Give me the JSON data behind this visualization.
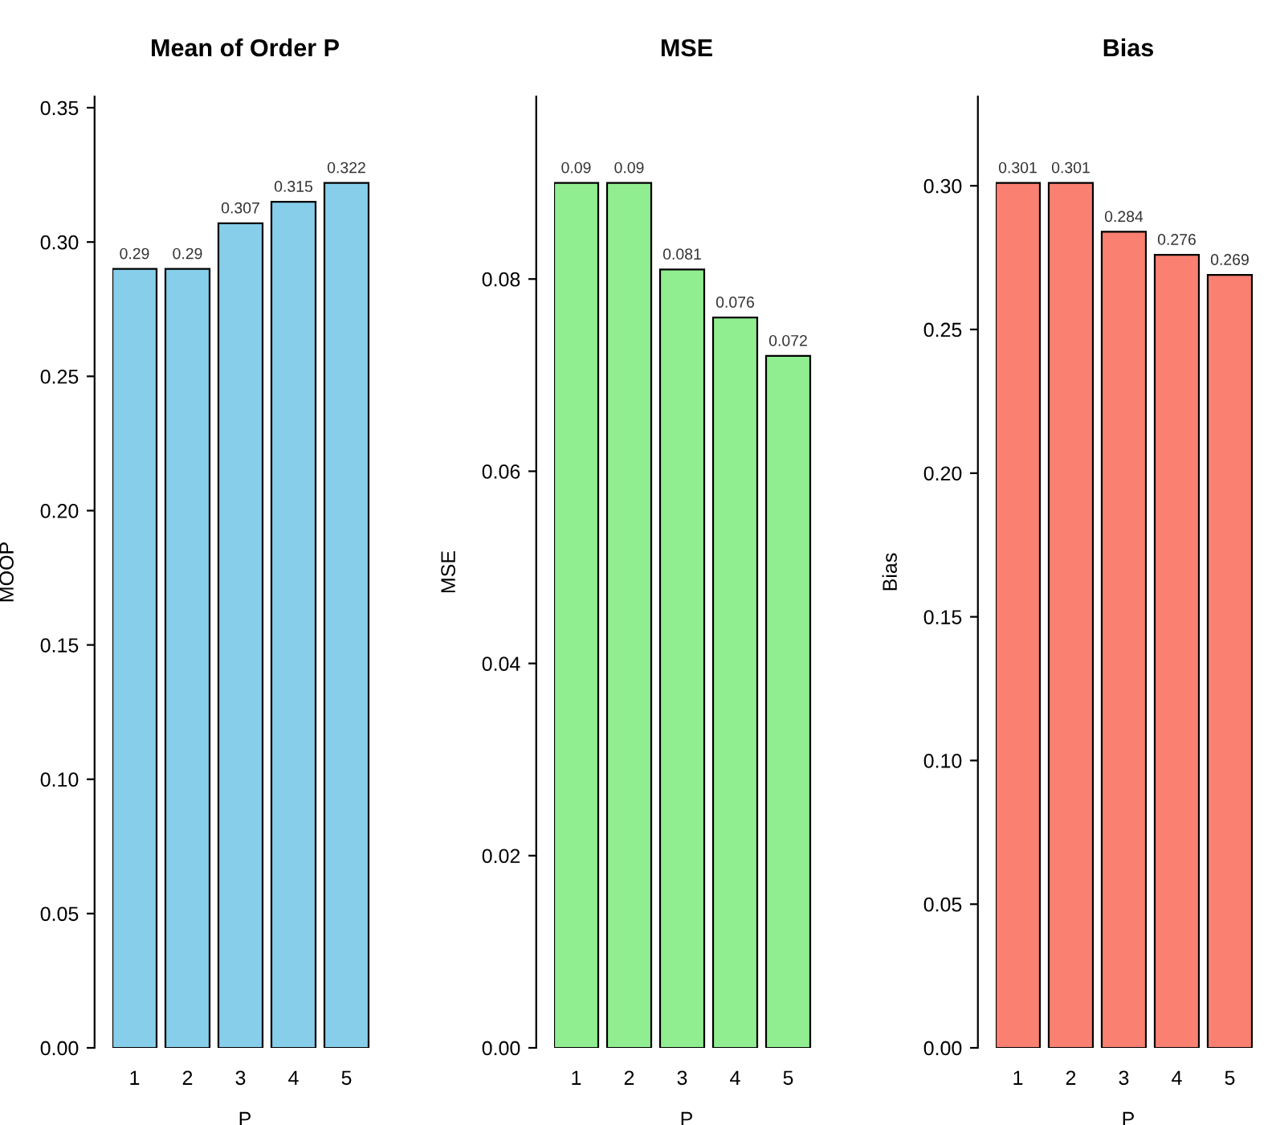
{
  "chart_data": [
    {
      "type": "bar",
      "title": "Mean of Order P",
      "xlabel": "P",
      "ylabel": "MOOP",
      "categories": [
        "1",
        "2",
        "3",
        "4",
        "5"
      ],
      "values": [
        0.29,
        0.29,
        0.307,
        0.315,
        0.322
      ],
      "color": "#87ceeb",
      "ylim": [
        0,
        0.3542
      ],
      "yticks": [
        {
          "value": 0,
          "label": "0.00"
        },
        {
          "value": 0.05,
          "label": "0.05"
        },
        {
          "value": 0.1,
          "label": "0.10"
        },
        {
          "value": 0.15,
          "label": "0.15"
        },
        {
          "value": 0.2,
          "label": "0.20"
        },
        {
          "value": 0.25,
          "label": "0.25"
        },
        {
          "value": 0.3,
          "label": "0.30"
        },
        {
          "value": 0.35,
          "label": "0.35"
        }
      ],
      "data_labels": true,
      "grid": false,
      "legend": false
    },
    {
      "type": "bar",
      "title": "MSE",
      "xlabel": "P",
      "ylabel": "MSE",
      "categories": [
        "1",
        "2",
        "3",
        "4",
        "5"
      ],
      "values": [
        0.09,
        0.09,
        0.081,
        0.076,
        0.072
      ],
      "color": "#90ee90",
      "ylim": [
        0,
        0.099
      ],
      "yticks": [
        {
          "value": 0,
          "label": "0.00"
        },
        {
          "value": 0.02,
          "label": "0.02"
        },
        {
          "value": 0.04,
          "label": "0.04"
        },
        {
          "value": 0.06,
          "label": "0.06"
        },
        {
          "value": 0.08,
          "label": "0.08"
        }
      ],
      "data_labels": true,
      "grid": false,
      "legend": false
    },
    {
      "type": "bar",
      "title": "Bias",
      "xlabel": "P",
      "ylabel": "Bias",
      "categories": [
        "1",
        "2",
        "3",
        "4",
        "5"
      ],
      "values": [
        0.301,
        0.301,
        0.284,
        0.276,
        0.269
      ],
      "color": "#fa8072",
      "ylim": [
        0,
        0.3311
      ],
      "yticks": [
        {
          "value": 0,
          "label": "0.00"
        },
        {
          "value": 0.05,
          "label": "0.05"
        },
        {
          "value": 0.1,
          "label": "0.10"
        },
        {
          "value": 0.15,
          "label": "0.15"
        },
        {
          "value": 0.2,
          "label": "0.20"
        },
        {
          "value": 0.25,
          "label": "0.25"
        },
        {
          "value": 0.3,
          "label": "0.30"
        }
      ],
      "data_labels": true,
      "grid": false,
      "legend": false
    }
  ]
}
